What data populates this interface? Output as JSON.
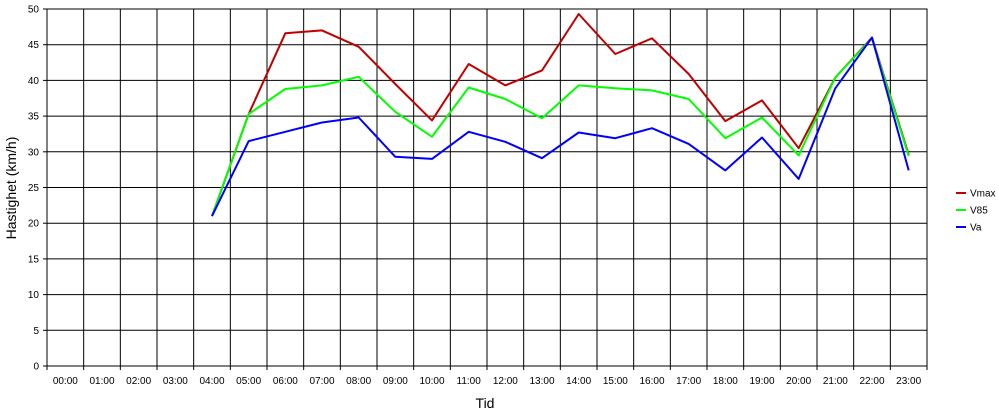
{
  "chart_data": {
    "type": "line",
    "title": "",
    "xlabel": "Tid",
    "ylabel": "Hastighet (km/h)",
    "ylim": [
      0,
      50
    ],
    "yticks": [
      0,
      5,
      10,
      15,
      20,
      25,
      30,
      35,
      40,
      45,
      50
    ],
    "grid": true,
    "legend_position": "right",
    "categories": [
      "00:00",
      "01:00",
      "02:00",
      "03:00",
      "04:00",
      "05:00",
      "06:00",
      "07:00",
      "08:00",
      "09:00",
      "10:00",
      "11:00",
      "12:00",
      "13:00",
      "14:00",
      "15:00",
      "16:00",
      "17:00",
      "18:00",
      "19:00",
      "20:00",
      "21:00",
      "22:00",
      "23:00"
    ],
    "series": [
      {
        "name": "Vmax",
        "color": "#c00000",
        "values": [
          null,
          null,
          null,
          null,
          21,
          35.3,
          46.6,
          47,
          44.7,
          39.5,
          34.4,
          42.3,
          39.3,
          41.4,
          49.3,
          43.7,
          45.9,
          40.9,
          34.3,
          37.2,
          30.5,
          40.4,
          46,
          29.6
        ]
      },
      {
        "name": "V85",
        "color": "#00ff00",
        "values": [
          null,
          null,
          null,
          null,
          21,
          35.3,
          38.8,
          39.3,
          40.5,
          35.6,
          32.1,
          39,
          37.4,
          34.7,
          39.3,
          38.9,
          38.6,
          37.4,
          31.9,
          34.8,
          29.5,
          40.4,
          45.9,
          29.4
        ]
      },
      {
        "name": "Va",
        "color": "#0000ff",
        "values": [
          null,
          null,
          null,
          null,
          21,
          31.5,
          32.8,
          34.1,
          34.8,
          29.3,
          29,
          32.8,
          31.4,
          29.1,
          32.7,
          31.9,
          33.3,
          31.1,
          27.4,
          32,
          26.2,
          38.9,
          46,
          27.4
        ]
      }
    ]
  }
}
